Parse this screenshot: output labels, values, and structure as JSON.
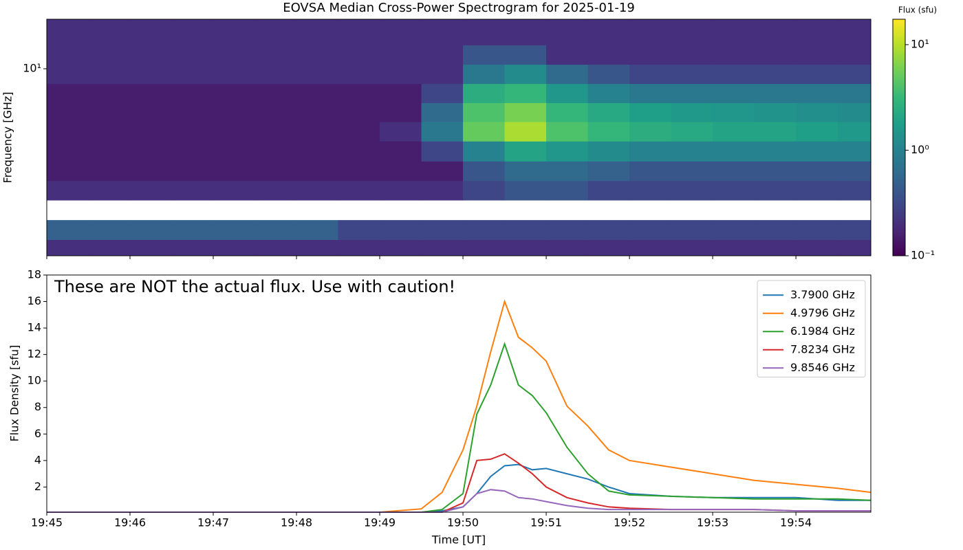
{
  "chart_data": [
    {
      "type": "heatmap",
      "title": "EOVSA Median Cross-Power Spectrogram for 2025-01-19",
      "ylabel": "Frequency [GHz]",
      "xlim": [
        "19:45:00",
        "19:54:54"
      ],
      "xticks": [
        "19:45",
        "19:46",
        "19:47",
        "19:48",
        "19:49",
        "19:50",
        "19:51",
        "19:52",
        "19:53",
        "19:54"
      ],
      "ylog": true,
      "ylim": [
        1.11,
        17.9
      ],
      "yticks": [
        {
          "value": 10,
          "label": "10¹"
        }
      ],
      "colormap": "viridis",
      "x": [
        "19:45:00",
        "19:45:30",
        "19:46:00",
        "19:46:30",
        "19:47:00",
        "19:47:30",
        "19:48:00",
        "19:48:30",
        "19:49:00",
        "19:49:30",
        "19:50:00",
        "19:50:30",
        "19:51:00",
        "19:51:30",
        "19:52:00",
        "19:52:30",
        "19:53:00",
        "19:53:30",
        "19:54:00",
        "19:54:30"
      ],
      "y": [
        1.2,
        1.5,
        1.9,
        2.4,
        3.0,
        3.8,
        4.8,
        6.0,
        7.5,
        9.4,
        11.8,
        14.8
      ],
      "z": [
        [
          0.2,
          0.2,
          0.2,
          0.2,
          0.2,
          0.2,
          0.2,
          0.2,
          0.2,
          0.2,
          0.2,
          0.2,
          0.2,
          0.2,
          0.2,
          0.2,
          0.2,
          0.2,
          0.2,
          0.2
        ],
        [
          0.5,
          0.5,
          0.5,
          0.5,
          0.5,
          0.5,
          0.5,
          0.3,
          0.3,
          0.3,
          0.3,
          0.3,
          0.3,
          0.3,
          0.3,
          0.3,
          0.3,
          0.3,
          0.3,
          0.3
        ],
        [
          null,
          null,
          null,
          null,
          null,
          null,
          null,
          null,
          null,
          null,
          null,
          null,
          null,
          null,
          null,
          null,
          null,
          null,
          null,
          null
        ],
        [
          0.2,
          0.2,
          0.2,
          0.2,
          0.2,
          0.2,
          0.2,
          0.2,
          0.2,
          0.2,
          0.3,
          0.4,
          0.4,
          0.3,
          0.3,
          0.3,
          0.3,
          0.3,
          0.3,
          0.3
        ],
        [
          0.15,
          0.15,
          0.15,
          0.15,
          0.15,
          0.15,
          0.15,
          0.15,
          0.15,
          0.15,
          0.4,
          0.6,
          0.6,
          0.5,
          0.4,
          0.4,
          0.4,
          0.4,
          0.4,
          0.4
        ],
        [
          0.15,
          0.15,
          0.15,
          0.15,
          0.15,
          0.15,
          0.15,
          0.15,
          0.15,
          0.3,
          1.0,
          2.0,
          1.5,
          1.2,
          1.0,
          1.0,
          1.0,
          1.0,
          1.0,
          1.0
        ],
        [
          0.15,
          0.15,
          0.15,
          0.15,
          0.15,
          0.15,
          0.15,
          0.15,
          0.2,
          0.8,
          5,
          9,
          4,
          3,
          2.5,
          2.2,
          2,
          2,
          1.8,
          1.6
        ],
        [
          0.15,
          0.15,
          0.15,
          0.15,
          0.15,
          0.15,
          0.15,
          0.15,
          0.15,
          0.6,
          4,
          6,
          3,
          2.2,
          1.8,
          1.6,
          1.5,
          1.4,
          1.3,
          1.2
        ],
        [
          0.15,
          0.15,
          0.15,
          0.15,
          0.15,
          0.15,
          0.15,
          0.15,
          0.15,
          0.3,
          2.5,
          3,
          1.5,
          1.0,
          0.8,
          0.8,
          0.8,
          0.8,
          0.8,
          0.8
        ],
        [
          0.2,
          0.2,
          0.2,
          0.2,
          0.2,
          0.2,
          0.2,
          0.2,
          0.2,
          0.2,
          0.8,
          1.2,
          0.6,
          0.4,
          0.3,
          0.3,
          0.3,
          0.3,
          0.3,
          0.3
        ],
        [
          0.2,
          0.2,
          0.2,
          0.2,
          0.2,
          0.2,
          0.2,
          0.2,
          0.2,
          0.2,
          0.4,
          0.4,
          0.2,
          0.2,
          0.2,
          0.2,
          0.2,
          0.2,
          0.2,
          0.2
        ],
        [
          0.2,
          0.2,
          0.2,
          0.2,
          0.2,
          0.2,
          0.2,
          0.2,
          0.2,
          0.2,
          0.2,
          0.2,
          0.2,
          0.2,
          0.2,
          0.2,
          0.2,
          0.2,
          0.2,
          0.2
        ]
      ],
      "colorbar": {
        "label": "Flux (sfu)",
        "log": true,
        "lim": [
          0.1,
          17.4
        ],
        "ticks": [
          {
            "value": 0.1,
            "label": "10⁻¹"
          },
          {
            "value": 1,
            "label": "10⁰"
          },
          {
            "value": 10,
            "label": "10¹"
          }
        ]
      }
    },
    {
      "type": "line",
      "annotation": "These are NOT the actual flux. Use with caution!",
      "xlabel": "Time [UT]",
      "ylabel": "Flux Density [sfu]",
      "xlim": [
        "19:45:00",
        "19:54:54"
      ],
      "xticks": [
        "19:45",
        "19:46",
        "19:47",
        "19:48",
        "19:49",
        "19:50",
        "19:51",
        "19:52",
        "19:53",
        "19:54"
      ],
      "ylim": [
        0.1,
        18
      ],
      "yticks": [
        2,
        4,
        6,
        8,
        10,
        12,
        14,
        16,
        18
      ],
      "legend": "upper right",
      "x": [
        "19:45:00",
        "19:46:00",
        "19:47:00",
        "19:48:00",
        "19:49:00",
        "19:49:30",
        "19:49:45",
        "19:50:00",
        "19:50:10",
        "19:50:20",
        "19:50:30",
        "19:50:40",
        "19:50:50",
        "19:51:00",
        "19:51:15",
        "19:51:30",
        "19:51:45",
        "19:52:00",
        "19:52:30",
        "19:53:00",
        "19:53:30",
        "19:54:00",
        "19:54:30",
        "19:54:54"
      ],
      "series": [
        {
          "name": "3.7900 GHz",
          "color": "#1f77b4",
          "values": [
            0.1,
            0.1,
            0.1,
            0.1,
            0.1,
            0.1,
            0.2,
            0.5,
            1.5,
            2.8,
            3.6,
            3.7,
            3.3,
            3.4,
            3.0,
            2.6,
            2.0,
            1.5,
            1.3,
            1.2,
            1.2,
            1.2,
            1.0,
            1.0
          ]
        },
        {
          "name": "4.9796 GHz",
          "color": "#ff7f0e",
          "values": [
            0.1,
            0.1,
            0.1,
            0.1,
            0.1,
            0.35,
            1.6,
            4.8,
            8.1,
            12.2,
            16.0,
            13.3,
            12.5,
            11.5,
            8.1,
            6.6,
            4.8,
            4.0,
            3.5,
            3.0,
            2.5,
            2.2,
            1.9,
            1.6
          ]
        },
        {
          "name": "6.1984 GHz",
          "color": "#2ca02c",
          "values": [
            0.1,
            0.1,
            0.1,
            0.1,
            0.1,
            0.1,
            0.3,
            1.5,
            7.5,
            9.7,
            12.8,
            9.7,
            8.9,
            7.6,
            5.0,
            3.0,
            1.7,
            1.4,
            1.3,
            1.2,
            1.1,
            1.1,
            1.1,
            1.0
          ]
        },
        {
          "name": "7.8234 GHz",
          "color": "#d62728",
          "values": [
            0.1,
            0.1,
            0.1,
            0.1,
            0.1,
            0.1,
            0.1,
            0.8,
            4.0,
            4.1,
            4.5,
            3.8,
            3.0,
            2.0,
            1.2,
            0.8,
            0.5,
            0.4,
            0.3,
            0.3,
            0.3,
            0.2,
            0.2,
            0.2
          ]
        },
        {
          "name": "9.8546 GHz",
          "color": "#9467bd",
          "values": [
            0.1,
            0.1,
            0.1,
            0.1,
            0.1,
            0.1,
            0.1,
            0.5,
            1.5,
            1.8,
            1.7,
            1.2,
            1.1,
            0.9,
            0.6,
            0.4,
            0.3,
            0.3,
            0.3,
            0.3,
            0.3,
            0.2,
            0.2,
            0.2
          ]
        }
      ]
    }
  ]
}
